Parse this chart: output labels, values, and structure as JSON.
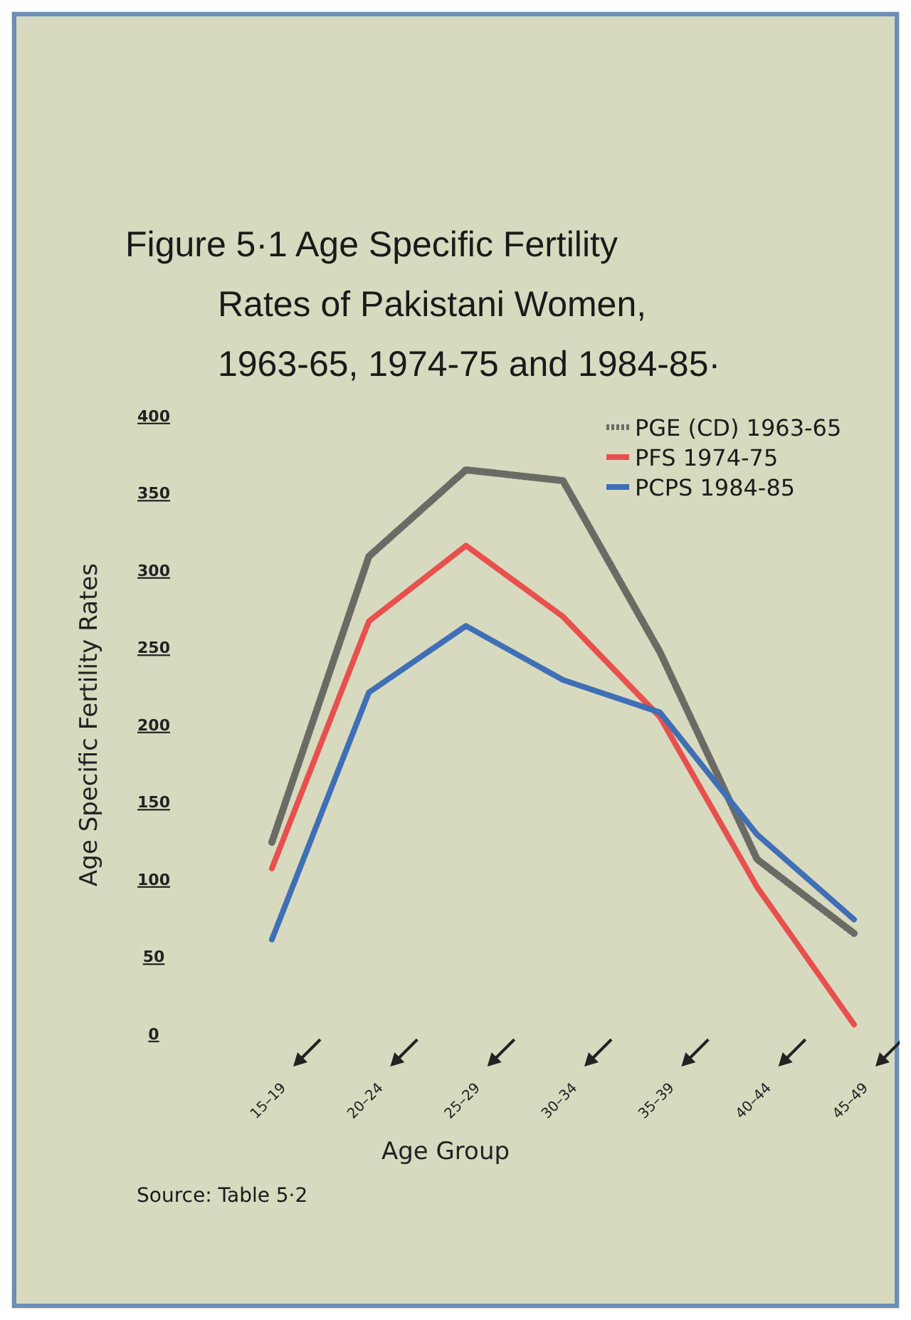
{
  "chart_data": {
    "type": "line",
    "title": "Figure 5·1 Age Specific Fertility Rates of Pakistani Women, 1963-65, 1974-75 and 1984-85·",
    "xlabel": "Age Group",
    "ylabel": "Age Specific Fertility Rates",
    "categories": [
      "15–19",
      "20–24",
      "25–29",
      "30–34",
      "35–39",
      "40–44",
      "45–49"
    ],
    "series": [
      {
        "name": "PGE (CD) 1963-65",
        "color": "#6b6b66",
        "line_style": "dotted",
        "values": [
          124,
          309,
          365,
          358,
          247,
          113,
          65
        ]
      },
      {
        "name": "PFS  1974-75",
        "color": "#e8504e",
        "values": [
          107,
          267,
          316,
          270,
          205,
          95,
          6
        ]
      },
      {
        "name": "PCPS 1984-85",
        "color": "#3f6fb5",
        "values": [
          61,
          221,
          264,
          229,
          208,
          129,
          74
        ]
      }
    ],
    "ylim": [
      0,
      400
    ],
    "yticks": [
      0,
      50,
      100,
      150,
      200,
      250,
      300,
      350,
      400
    ],
    "grid": false,
    "legend": "top right",
    "annotations": [
      "Source: Table 5·2"
    ]
  }
}
